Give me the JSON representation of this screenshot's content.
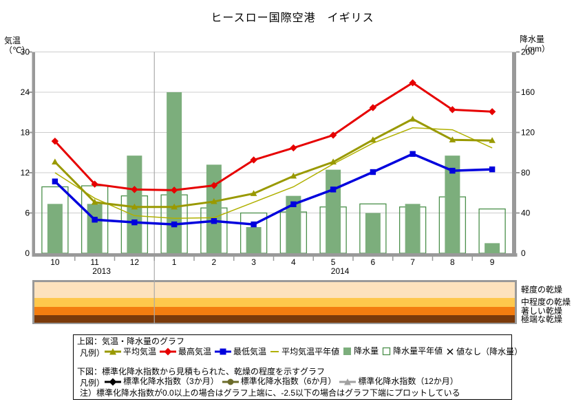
{
  "chart_data": {
    "type": "line+bar climate combo",
    "title": "ヒースロー国際空港　イギリス",
    "categories": [
      "10",
      "11",
      "12",
      "1",
      "2",
      "3",
      "4",
      "5",
      "6",
      "7",
      "8",
      "9"
    ],
    "year_labels": [
      {
        "label": "2013",
        "index": 1
      },
      {
        "label": "2014",
        "index": 7
      }
    ],
    "temp_axis": {
      "name": "気温",
      "unit": "（℃）",
      "min": 0,
      "max": 30,
      "ticks": [
        0,
        6,
        12,
        18,
        24,
        30
      ]
    },
    "precip_axis": {
      "name": "降水量",
      "unit": "（mm）",
      "min": 0,
      "max": 200,
      "ticks": [
        0,
        40,
        80,
        120,
        160,
        200
      ]
    },
    "grid": true,
    "year_divider_between": [
      "12",
      "1"
    ],
    "line_series": [
      {
        "name": "平均気温平年値",
        "marker": "none",
        "width": 1.5,
        "color": "#b0b000",
        "values": [
          12.0,
          8.2,
          5.6,
          5.2,
          5.3,
          7.6,
          9.9,
          13.3,
          16.4,
          18.7,
          18.4,
          15.7
        ]
      },
      {
        "name": "平均気温",
        "marker": "triangle",
        "width": 3,
        "color": "#999900",
        "values": [
          13.6,
          7.6,
          6.9,
          6.9,
          7.7,
          8.9,
          11.5,
          13.6,
          16.9,
          20.0,
          16.9,
          16.8
        ]
      },
      {
        "name": "最高気温",
        "marker": "diamond",
        "width": 3,
        "color": "#e60000",
        "values": [
          16.7,
          10.3,
          9.5,
          9.4,
          10.1,
          13.9,
          15.7,
          17.6,
          21.7,
          25.4,
          21.4,
          21.1
        ]
      },
      {
        "name": "最低気温",
        "marker": "square",
        "width": 3.5,
        "color": "#0000dd",
        "values": [
          10.7,
          5.0,
          4.6,
          4.3,
          4.8,
          4.3,
          7.3,
          9.5,
          12.1,
          14.8,
          12.3,
          12.5
        ]
      }
    ],
    "bar_series": [
      {
        "name": "降水量平年値",
        "style": "outline",
        "color": "#4a8f4a",
        "values": [
          66,
          67,
          57,
          58,
          45,
          40,
          41,
          46,
          49,
          46,
          56,
          44
        ]
      },
      {
        "name": "降水量",
        "style": "filled",
        "color": "#7cae7c",
        "values": [
          49,
          49,
          97,
          160,
          88,
          26,
          57,
          83,
          40,
          49,
          97,
          10
        ]
      }
    ]
  },
  "dryness_band": {
    "border_color": "#999999",
    "stripes": [
      {
        "label": "軽度の乾燥",
        "color": "#fde2bd"
      },
      {
        "label": "中程度の乾燥",
        "color": "#fec84c"
      },
      {
        "label": "著しい乾燥",
        "color": "#f37d10"
      },
      {
        "label": "極端な乾燥",
        "color": "#7a3a0b"
      }
    ]
  },
  "legend": {
    "upper_title": "上図：気温・降水量のグラフ",
    "prefix": "凡例）",
    "upper_items": [
      {
        "label": "平均気温",
        "marker": "line-triangle",
        "color": "#999900"
      },
      {
        "label": "最高気温",
        "marker": "line-diamond",
        "color": "#e60000"
      },
      {
        "label": "最低気温",
        "marker": "line-square",
        "color": "#0000dd"
      },
      {
        "label": "平均気温平年値",
        "marker": "thin-line",
        "color": "#b0b000"
      },
      {
        "label": "降水量",
        "marker": "filled-square",
        "color": "#7cae7c"
      },
      {
        "label": "降水量平年値",
        "marker": "outline-square",
        "color": "#4a8f4a"
      },
      {
        "label": "値なし（降水量）",
        "marker": "x-mark",
        "color": "#000000"
      }
    ],
    "lower_title": "下図：標準化降水指数から見積もられた、乾燥の程度を示すグラフ",
    "lower_items": [
      {
        "label": "標準化降水指数（3か月）",
        "marker": "line-diamond",
        "color": "#000000"
      },
      {
        "label": "標準化降水指数（6か月）",
        "marker": "line-circle",
        "color": "#6b6b2a"
      },
      {
        "label": "標準化降水指数（12か月）",
        "marker": "line-triangle",
        "color": "#a0a0a0"
      }
    ],
    "note": "注）標準化降水指数が0.0以上の場合はグラフ上端に、-2.5以下の場合はグラフ下端にプロットしている"
  }
}
